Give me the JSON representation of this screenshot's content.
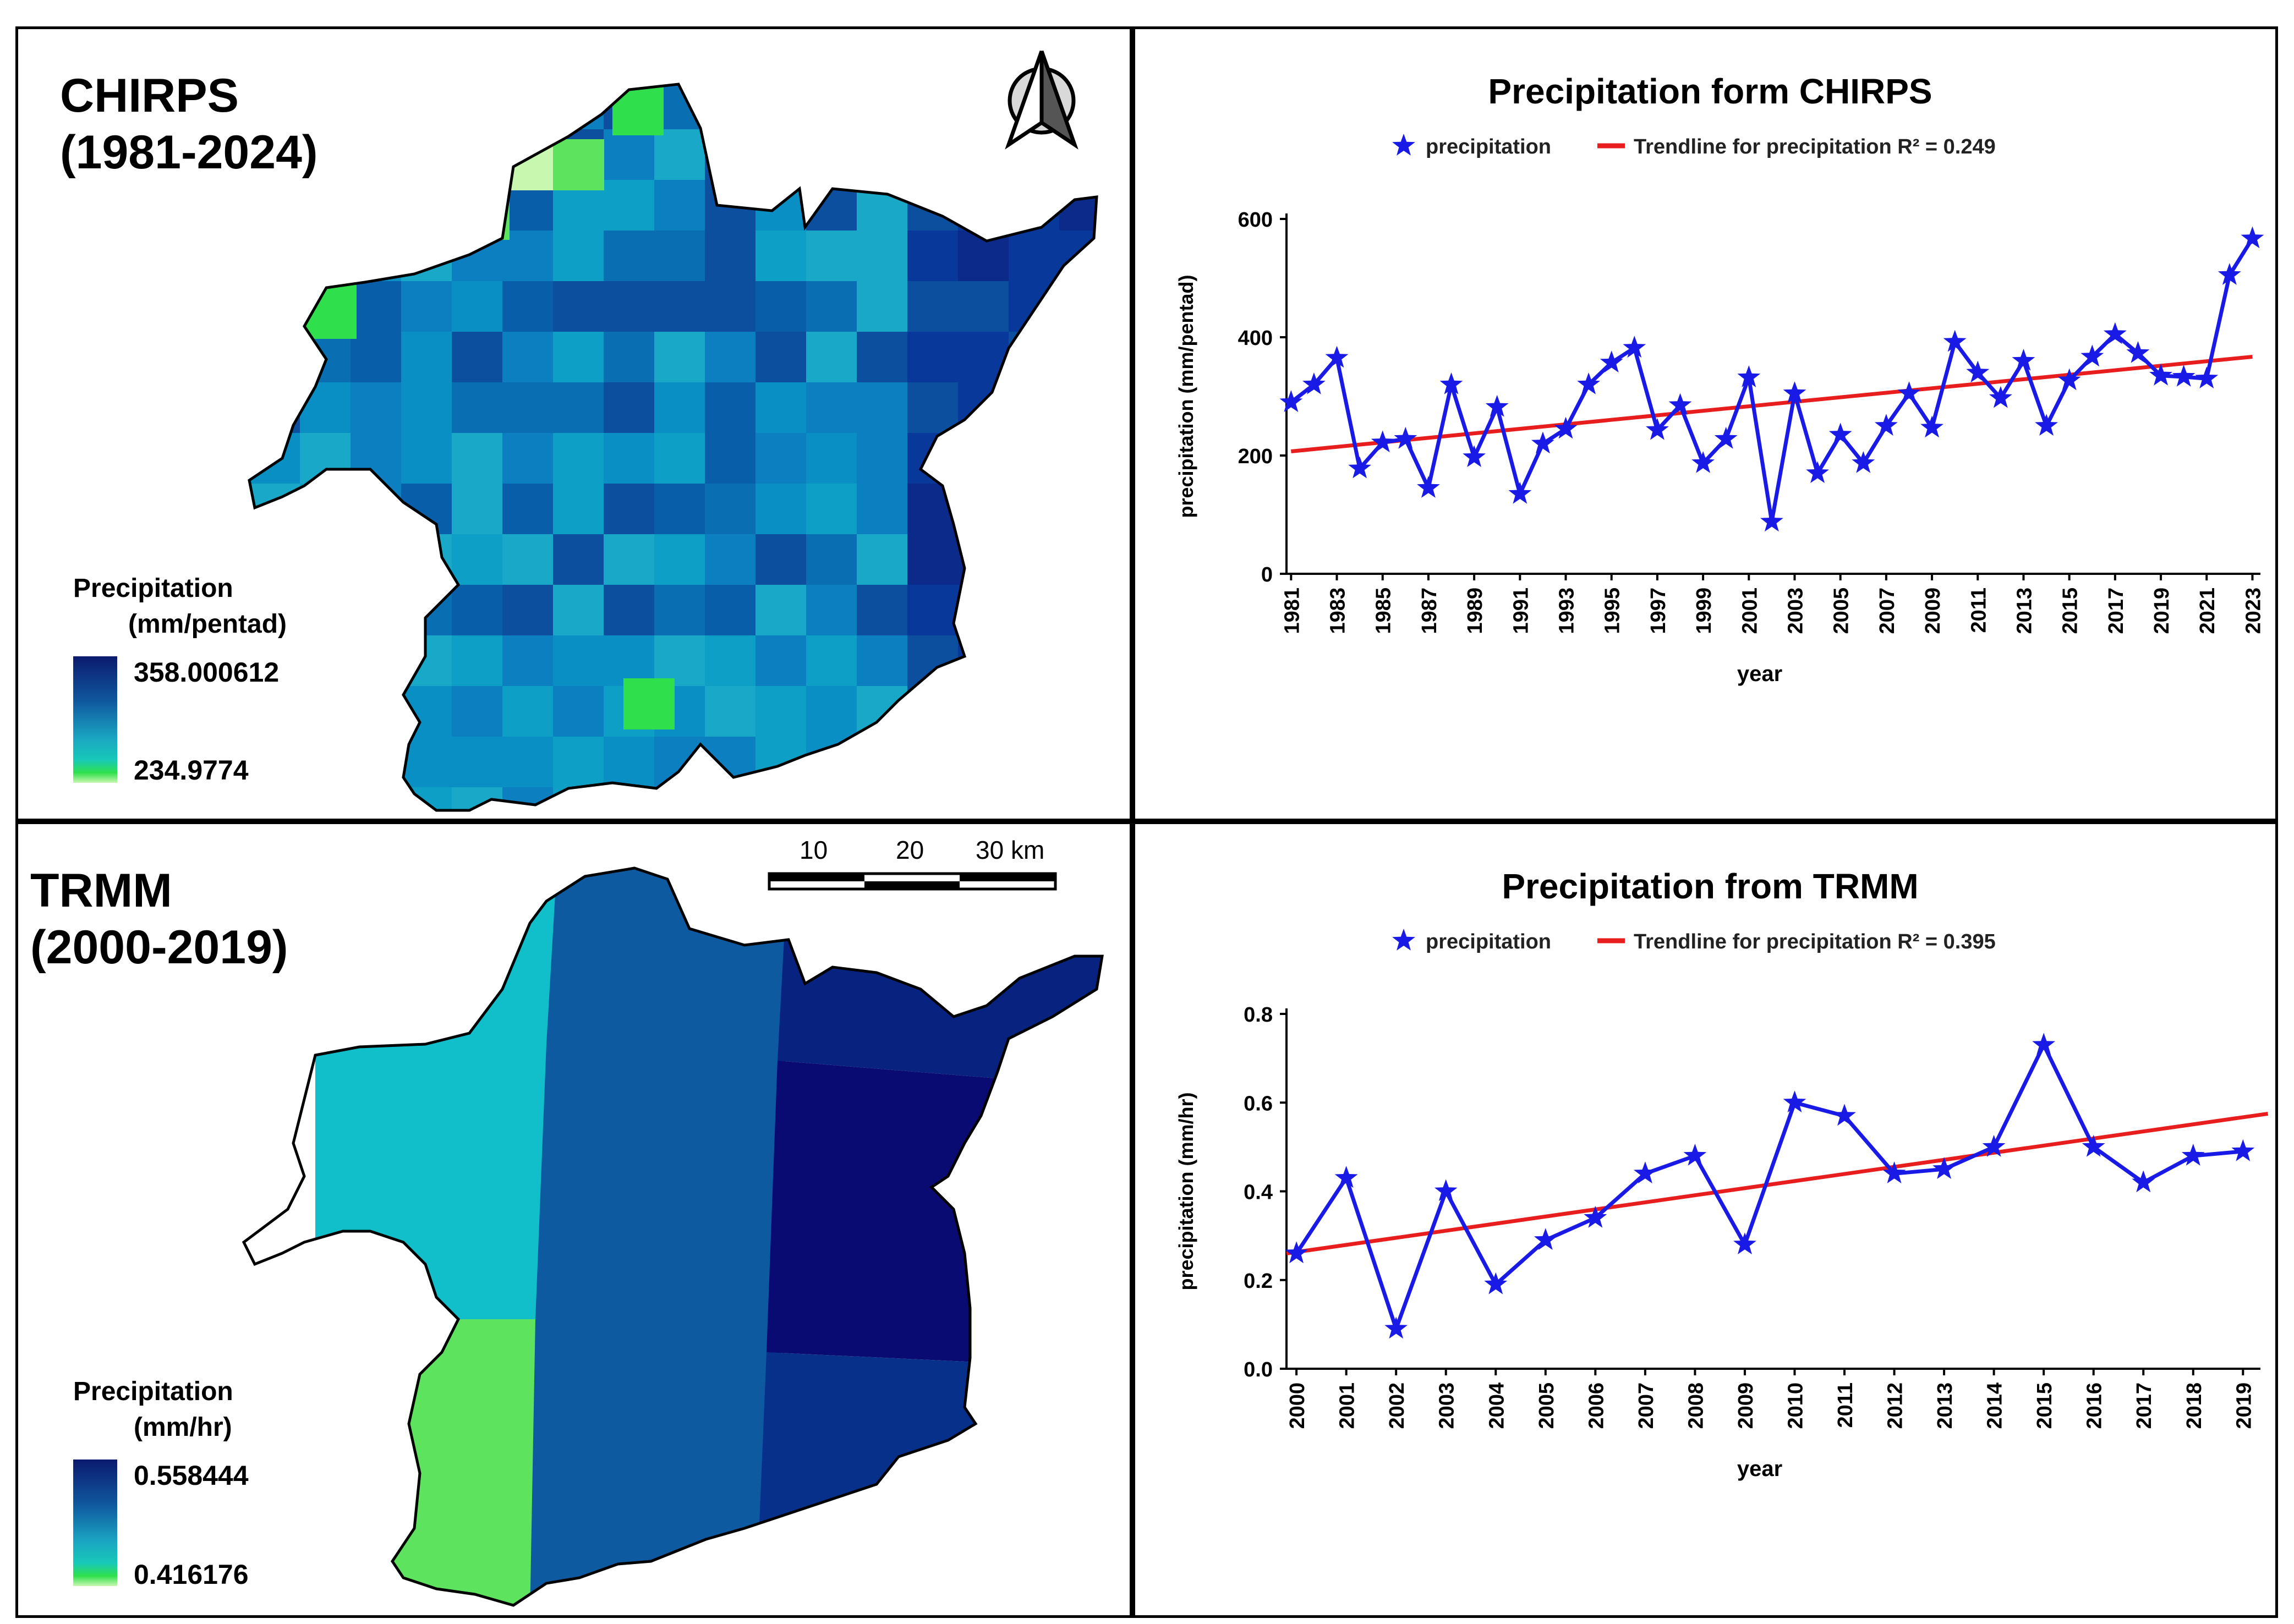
{
  "chirps_map": {
    "title_line1": "CHIRPS",
    "title_line2": "(1981-2024)",
    "legend_title": "Precipitation",
    "legend_unit": "(mm/pentad)",
    "legend_max": "358.000612",
    "legend_min": "234.9774",
    "north_arrow_icon": "north-arrow-icon"
  },
  "trmm_map": {
    "title_line1": "TRMM",
    "title_line2": "(2000-2019)",
    "legend_title": "Precipitation",
    "legend_unit": "(mm/hr)",
    "legend_max": "0.558444",
    "legend_min": "0.416176",
    "scale_labels": [
      "10",
      "20",
      "30 km"
    ]
  },
  "chart_data": [
    {
      "type": "line",
      "title": "Precipitation form CHIRPS",
      "xlabel": "year",
      "ylabel": "precipitation (mm/pentad)",
      "ylim": [
        0,
        600
      ],
      "yticks": [
        0,
        200,
        400,
        600
      ],
      "xtick_labels": [
        "1981",
        "1983",
        "1985",
        "1987",
        "1989",
        "1991",
        "1993",
        "1995",
        "1997",
        "1999",
        "2001",
        "2003",
        "2005",
        "2007",
        "2009",
        "2011",
        "2013",
        "2015",
        "2017",
        "2019",
        "2021",
        "2023"
      ],
      "legend": [
        "precipitation",
        "Trendline for precipitation R² = 0.249"
      ],
      "legend_position": "top",
      "series": [
        {
          "name": "precipitation",
          "color": "#1a1ae6",
          "x": [
            1981,
            1982,
            1983,
            1984,
            1985,
            1986,
            1987,
            1988,
            1989,
            1990,
            1991,
            1992,
            1993,
            1994,
            1995,
            1996,
            1997,
            1998,
            1999,
            2000,
            2001,
            2002,
            2003,
            2004,
            2005,
            2006,
            2007,
            2008,
            2009,
            2010,
            2011,
            2012,
            2013,
            2014,
            2015,
            2016,
            2017,
            2018,
            2019,
            2020,
            2021,
            2022,
            2023
          ],
          "y": [
            290,
            320,
            365,
            178,
            222,
            228,
            145,
            320,
            197,
            282,
            135,
            220,
            245,
            320,
            357,
            382,
            243,
            285,
            187,
            228,
            332,
            88,
            305,
            170,
            235,
            187,
            250,
            305,
            247,
            392,
            340,
            297,
            360,
            250,
            327,
            367,
            405,
            373,
            335,
            333,
            330,
            505,
            567
          ]
        }
      ],
      "trendline": {
        "name": "Trendline for precipitation R² = 0.249",
        "color": "#e81e1e",
        "x": [
          1981,
          2023
        ],
        "y": [
          207,
          367
        ]
      }
    },
    {
      "type": "line",
      "title": "Precipitation from TRMM",
      "xlabel": "year",
      "ylabel": "precipitation (mm/hr)",
      "ylim": [
        0,
        0.8
      ],
      "yticks": [
        "0.0",
        "0.2",
        "0.4",
        "0.6",
        "0.8"
      ],
      "xtick_labels": [
        "2000",
        "2001",
        "2002",
        "2003",
        "2004",
        "2005",
        "2006",
        "2007",
        "2008",
        "2009",
        "2010",
        "2011",
        "2012",
        "2013",
        "2014",
        "2015",
        "2016",
        "2017",
        "2018",
        "2019"
      ],
      "legend": [
        "precipitation",
        "Trendline for precipitation R² = 0.395"
      ],
      "legend_position": "top",
      "series": [
        {
          "name": "precipitation",
          "color": "#1a1ae6",
          "x": [
            2000,
            2001,
            2002,
            2003,
            2004,
            2005,
            2006,
            2007,
            2008,
            2009,
            2010,
            2011,
            2012,
            2013,
            2014,
            2015,
            2016,
            2017,
            2018,
            2019
          ],
          "y": [
            0.26,
            0.43,
            0.09,
            0.4,
            0.19,
            0.29,
            0.34,
            0.44,
            0.48,
            0.28,
            0.6,
            0.57,
            0.44,
            0.45,
            0.5,
            0.73,
            0.5,
            0.42,
            0.48,
            0.49
          ]
        }
      ],
      "trendline": {
        "name": "Trendline for precipitation R² = 0.395",
        "color": "#e81e1e",
        "x": [
          1999.8,
          2019.5
        ],
        "y": [
          0.26,
          0.575
        ]
      }
    }
  ]
}
